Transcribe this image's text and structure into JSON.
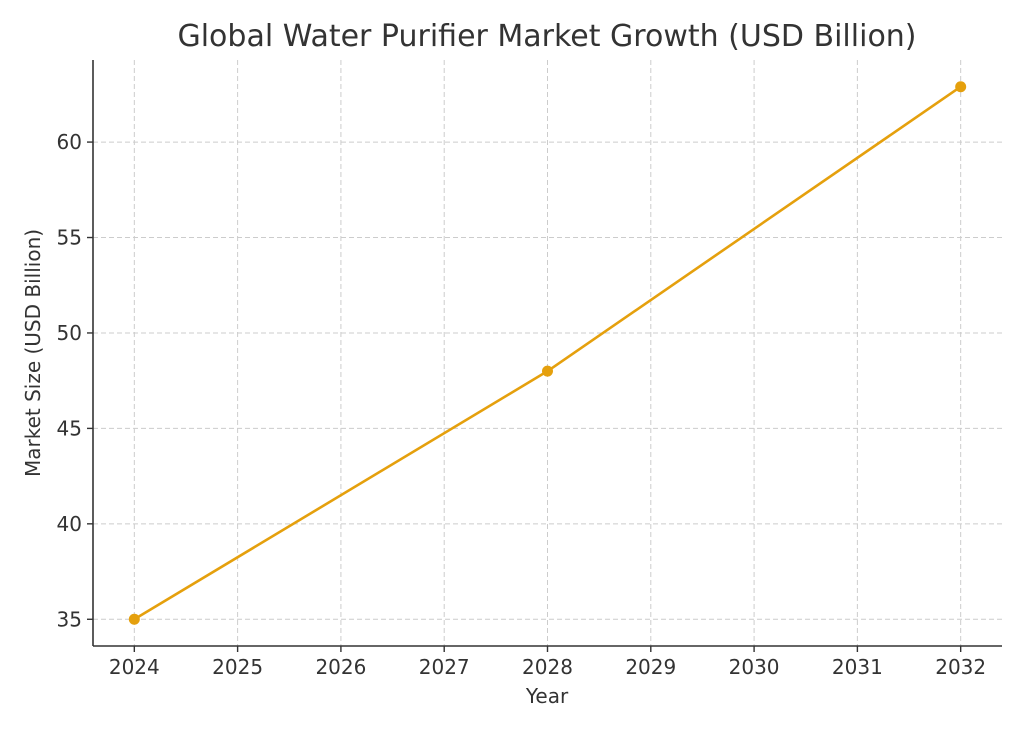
{
  "chart_data": {
    "type": "line",
    "title": "Global Water Purifier Market Growth (USD Billion)",
    "xlabel": "Year",
    "ylabel": "Market Size (USD Billion)",
    "x_ticks": [
      2024,
      2025,
      2026,
      2027,
      2028,
      2029,
      2030,
      2031,
      2032
    ],
    "y_ticks": [
      35,
      40,
      45,
      50,
      55,
      60
    ],
    "xlim": [
      2023.6,
      2032.4
    ],
    "ylim": [
      33.6,
      64.3
    ],
    "grid": true,
    "series": [
      {
        "x": [
          2024,
          2028,
          2032
        ],
        "y": [
          35.0,
          48.0,
          62.9
        ],
        "color": "#e5a00d",
        "marker": "circle"
      }
    ]
  }
}
